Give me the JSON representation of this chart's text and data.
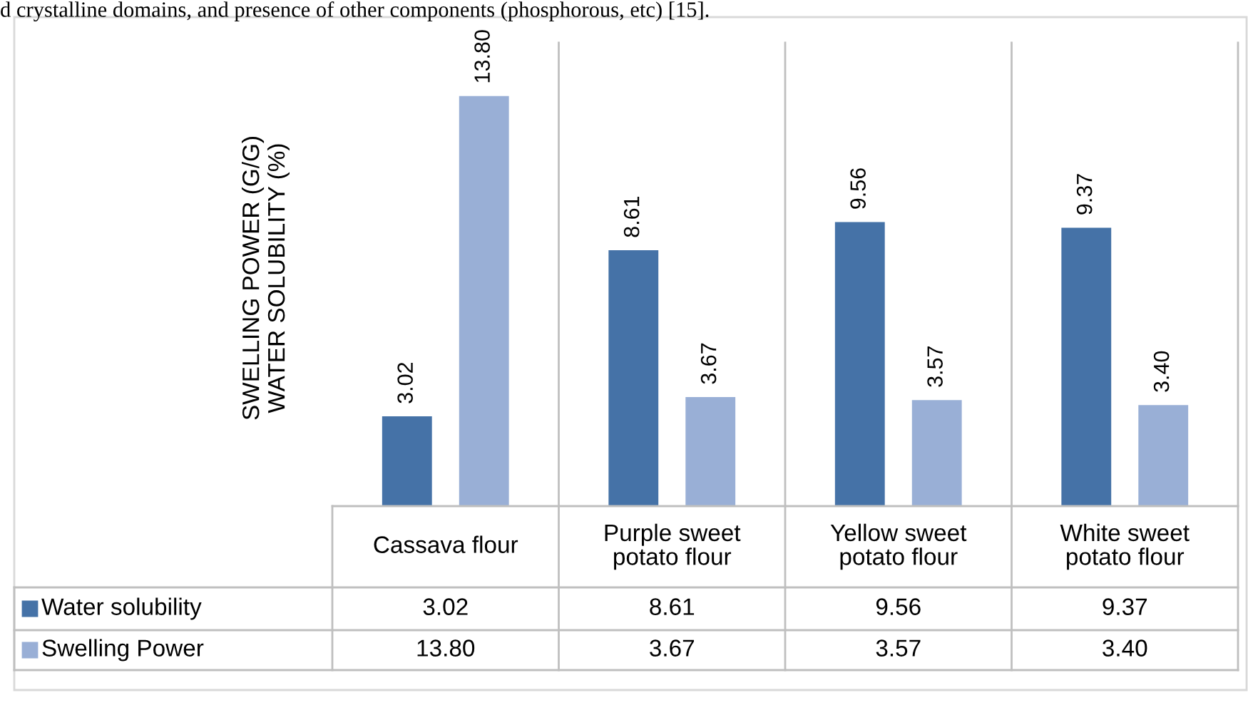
{
  "chart_data": {
    "type": "bar",
    "ylabel": "SWELLING POWER (G/G)\nWATER SOLUBILITY (%)",
    "categories": [
      "Cassava flour",
      "Purple sweet\npotato flour",
      "Yellow sweet\npotato flour",
      "White sweet\npotato flour"
    ],
    "series": [
      {
        "name": "Water solubility",
        "color": "#4572a7",
        "values": [
          3.02,
          8.61,
          9.56,
          9.37
        ],
        "value_labels": [
          "3.02",
          "8.61",
          "9.56",
          "9.37"
        ]
      },
      {
        "name": "Swelling Power",
        "color": "#99afd6",
        "values": [
          13.8,
          3.67,
          3.57,
          3.4
        ],
        "value_labels": [
          "13.80",
          "3.67",
          "3.57",
          "3.40"
        ]
      }
    ],
    "data_labels": true,
    "legend": "bottom",
    "annotations": [
      "d crystalline domains, and presence of other components (phosphorous, etc) [15]."
    ]
  }
}
